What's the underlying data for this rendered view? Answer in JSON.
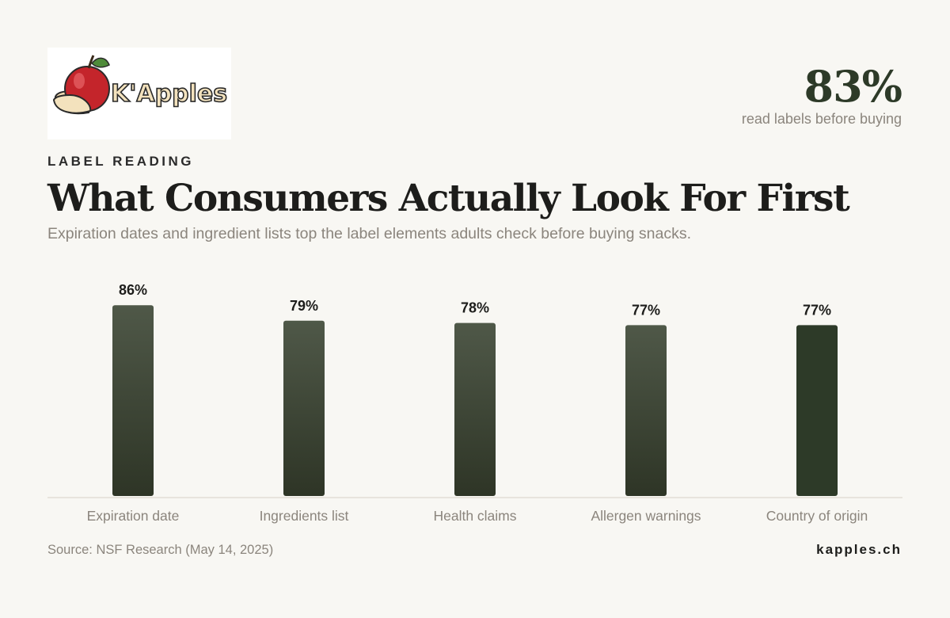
{
  "brand": {
    "logo_text": "K'Apples",
    "site": "kapples.ch"
  },
  "header": {
    "eyebrow": "LABEL READING",
    "title": "What Consumers Actually Look For First",
    "subtitle": "Expiration dates and ingredient lists top the label elements adults check before buying snacks."
  },
  "stat": {
    "value": "83%",
    "label": "read labels before buying"
  },
  "footer": {
    "source": "Source: NSF Research (May 14, 2025)"
  },
  "colors": {
    "bar_top": "#4f5848",
    "bar_bottom": "#2e3526",
    "bar_highlight": "#2d3a28",
    "stat": "#2d3a28"
  },
  "chart_data": {
    "type": "bar",
    "categories": [
      "Expiration date",
      "Ingredients list",
      "Health claims",
      "Allergen warnings",
      "Country of origin"
    ],
    "values": [
      86,
      79,
      78,
      77,
      77
    ],
    "value_labels": [
      "86%",
      "79%",
      "78%",
      "77%",
      "77%"
    ],
    "highlight_index": 4,
    "ylim": [
      0,
      100
    ],
    "grid": false
  }
}
